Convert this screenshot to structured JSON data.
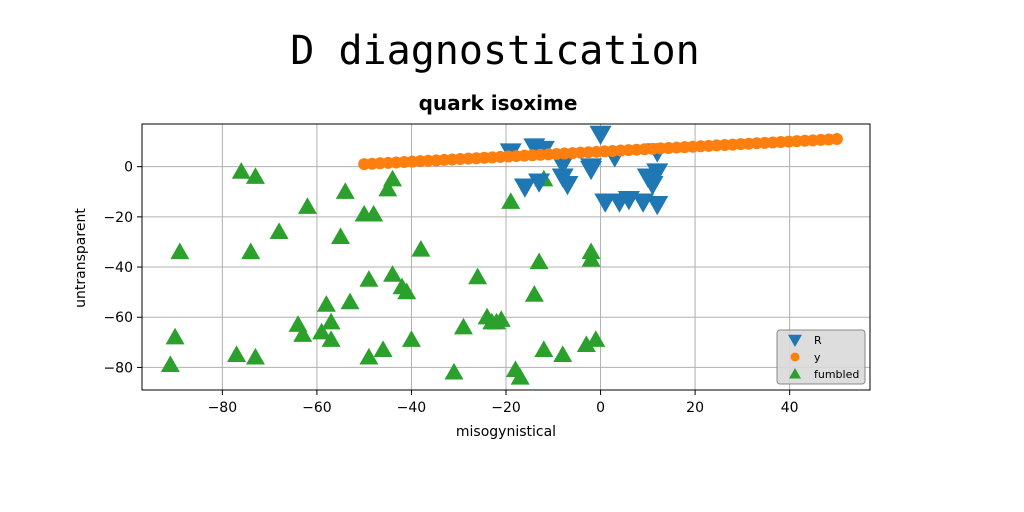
{
  "chart_data": {
    "type": "scatter",
    "suptitle": "D diagnostication",
    "title": "quark isoxime",
    "xlabel": "misogynistical",
    "ylabel": "untransparent",
    "xlim": [
      -97,
      57
    ],
    "ylim": [
      -89,
      17
    ],
    "xticks": [
      -80,
      -60,
      -40,
      -20,
      0,
      20,
      40
    ],
    "yticks": [
      -80,
      -60,
      -40,
      -20,
      0
    ],
    "xtick_labels": [
      "−80",
      "−60",
      "−40",
      "−20",
      "0",
      "20",
      "40"
    ],
    "ytick_labels": [
      "−80",
      "−60",
      "−40",
      "−20",
      "0"
    ],
    "grid": true,
    "legend_position": "lower-right",
    "series": [
      {
        "name": "R",
        "color": "#1f77b4",
        "marker": "triangle-down",
        "points": [
          [
            0,
            13
          ],
          [
            -19,
            6
          ],
          [
            -14,
            8
          ],
          [
            -12,
            7
          ],
          [
            -8,
            1
          ],
          [
            -2,
            0
          ],
          [
            3,
            4
          ],
          [
            -16,
            -8
          ],
          [
            -13,
            -6
          ],
          [
            -8,
            -4
          ],
          [
            -7,
            -7
          ],
          [
            -2,
            -1
          ],
          [
            1,
            -14
          ],
          [
            4,
            -14
          ],
          [
            6,
            -13
          ],
          [
            9,
            -14
          ],
          [
            10,
            -4
          ],
          [
            11,
            -7
          ],
          [
            12,
            -2
          ],
          [
            12,
            -15
          ],
          [
            12,
            6
          ]
        ]
      },
      {
        "name": "y",
        "color": "#ff7f0e",
        "marker": "circle",
        "line": {
          "x_start": -50,
          "x_end": 50,
          "y_start": 1,
          "y_end": 11,
          "count": 60
        }
      },
      {
        "name": "fumbled",
        "color": "#2ca02c",
        "marker": "triangle-up",
        "points": [
          [
            -91,
            -79
          ],
          [
            -90,
            -68
          ],
          [
            -89,
            -34
          ],
          [
            -77,
            -75
          ],
          [
            -76,
            -2
          ],
          [
            -74,
            -34
          ],
          [
            -73,
            -4
          ],
          [
            -73,
            -76
          ],
          [
            -68,
            -26
          ],
          [
            -64,
            -63
          ],
          [
            -63,
            -67
          ],
          [
            -62,
            -16
          ],
          [
            -59,
            -66
          ],
          [
            -58,
            -55
          ],
          [
            -57,
            -69
          ],
          [
            -57,
            -62
          ],
          [
            -55,
            -28
          ],
          [
            -54,
            -10
          ],
          [
            -53,
            -54
          ],
          [
            -50,
            -19
          ],
          [
            -49,
            -45
          ],
          [
            -49,
            -76
          ],
          [
            -48,
            -19
          ],
          [
            -46,
            -73
          ],
          [
            -45,
            -9
          ],
          [
            -44,
            -5
          ],
          [
            -44,
            -43
          ],
          [
            -42,
            -48
          ],
          [
            -41,
            -50
          ],
          [
            -40,
            -69
          ],
          [
            -38,
            -33
          ],
          [
            -31,
            -82
          ],
          [
            -29,
            -64
          ],
          [
            -26,
            -44
          ],
          [
            -24,
            -60
          ],
          [
            -23,
            -62
          ],
          [
            -22,
            -62
          ],
          [
            -21,
            -61
          ],
          [
            -19,
            -14
          ],
          [
            -18,
            -81
          ],
          [
            -17,
            -84
          ],
          [
            -14,
            -51
          ],
          [
            -13,
            -38
          ],
          [
            -12,
            -5
          ],
          [
            -12,
            -73
          ],
          [
            -8,
            -75
          ],
          [
            -3,
            -71
          ],
          [
            -2,
            -37
          ],
          [
            -2,
            -34
          ],
          [
            -1,
            -69
          ]
        ]
      }
    ]
  }
}
